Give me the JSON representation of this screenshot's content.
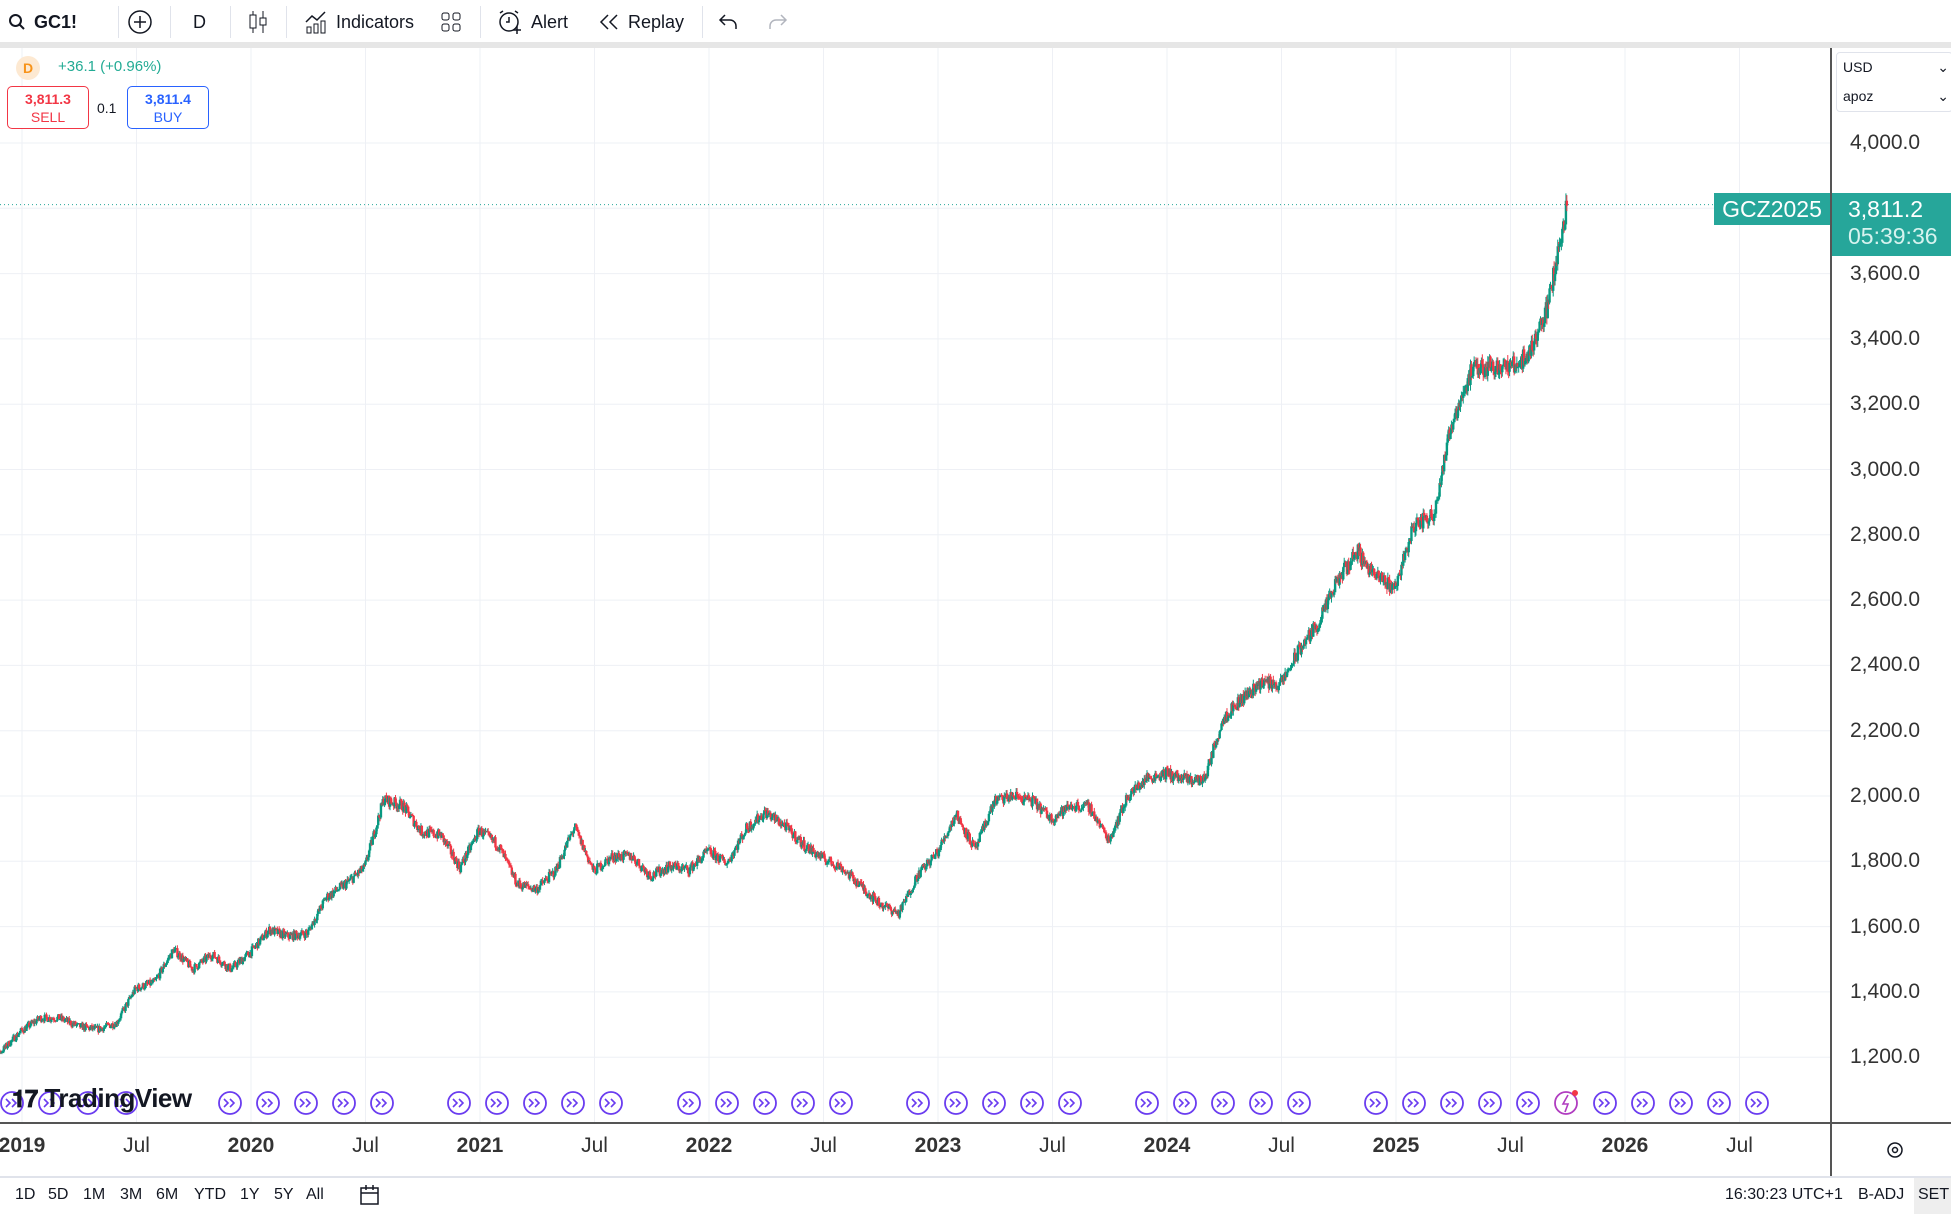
{
  "toolbar": {
    "symbol": "GC1!",
    "interval": "D",
    "indicators_label": "Indicators",
    "alert_label": "Alert",
    "replay_label": "Replay",
    "icons": [
      "search-icon",
      "add-symbol-icon",
      "candles-icon",
      "indicators-icon",
      "layout-grid-icon",
      "alert-clock-icon",
      "replay-icon",
      "undo-icon",
      "redo-icon"
    ]
  },
  "legend": {
    "interval_badge": "D",
    "change": "+36.1 (+0.96%)",
    "sell_price": "3,811.3",
    "sell_label": "SELL",
    "spread": "0.1",
    "buy_price": "3,811.4",
    "buy_label": "BUY"
  },
  "price_axis": {
    "currency": "USD",
    "unit": "apoz",
    "last_symbol": "GCZ2025",
    "last_price": "3,811.2",
    "countdown": "05:39:36"
  },
  "colors": {
    "up": "#089981",
    "down": "#f23645",
    "accent": "#26a69a",
    "event": "#6a3cf0"
  },
  "logo": "TradingView",
  "bottom_bar": {
    "ranges": [
      "1D",
      "5D",
      "1M",
      "3M",
      "6M",
      "YTD",
      "1Y",
      "5Y",
      "All"
    ],
    "time": "16:30:23 UTC+1",
    "adj": "B-ADJ",
    "session": "SET"
  },
  "chart_data": {
    "type": "candlestick",
    "symbol": "GC1!",
    "interval": "D",
    "ylim": [
      1100,
      4150
    ],
    "y_ticks": [
      "4,000.0",
      "3,600.0",
      "3,400.0",
      "3,200.0",
      "3,000.0",
      "2,800.0",
      "2,600.0",
      "2,400.0",
      "2,200.0",
      "2,000.0",
      "1,800.0",
      "1,600.0",
      "1,400.0",
      "1,200.0"
    ],
    "x_ticks": [
      "2019",
      "Jul",
      "2020",
      "Jul",
      "2021",
      "Jul",
      "2022",
      "Jul",
      "2023",
      "Jul",
      "2024",
      "Jul",
      "2025",
      "Jul",
      "2026",
      "Jul"
    ],
    "start_month": "2018-11",
    "monthly_close": [
      1220,
      1280,
      1320,
      1320,
      1295,
      1285,
      1305,
      1410,
      1430,
      1530,
      1470,
      1515,
      1470,
      1520,
      1590,
      1570,
      1580,
      1690,
      1730,
      1780,
      1990,
      1970,
      1890,
      1880,
      1780,
      1895,
      1850,
      1730,
      1715,
      1770,
      1905,
      1770,
      1815,
      1815,
      1755,
      1785,
      1775,
      1830,
      1795,
      1900,
      1950,
      1910,
      1850,
      1810,
      1780,
      1725,
      1670,
      1640,
      1760,
      1825,
      1945,
      1835,
      1985,
      2000,
      1985,
      1930,
      1970,
      1965,
      1865,
      2000,
      2055,
      2070,
      2050,
      2050,
      2240,
      2300,
      2350,
      2340,
      2450,
      2530,
      2660,
      2750,
      2670,
      2640,
      2830,
      2860,
      3150,
      3300,
      3320,
      3310,
      3350,
      3500,
      3811
    ],
    "last": 3811.2
  }
}
